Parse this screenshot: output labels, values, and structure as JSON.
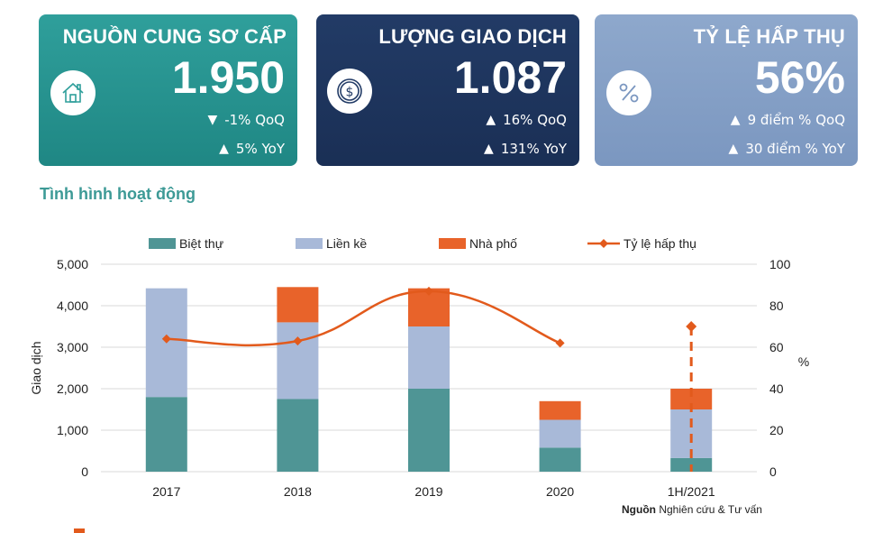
{
  "cards": [
    {
      "title": "NGUỒN CUNG SƠ CẤP",
      "value": "1.950",
      "icon": "house-icon",
      "stats": [
        {
          "direction": "down",
          "text": "-1% QoQ"
        },
        {
          "direction": "up",
          "text": "5% YoY"
        }
      ]
    },
    {
      "title": "LƯỢNG GIAO DỊCH",
      "value": "1.087",
      "icon": "dollar-coin-icon",
      "stats": [
        {
          "direction": "up",
          "text": "16% QoQ"
        },
        {
          "direction": "up",
          "text": "131% YoY"
        }
      ]
    },
    {
      "title": "TỶ LỆ HẤP THỤ",
      "value": "56%",
      "icon": "percent-icon",
      "stats": [
        {
          "direction": "up",
          "text": "9 điểm % QoQ"
        },
        {
          "direction": "up",
          "text": "30 điểm % YoY"
        }
      ]
    }
  ],
  "section_title": "Tình hình hoạt động",
  "source": {
    "label": "Nguồn",
    "text": "Nghiên cứu & Tư vấn"
  },
  "colors": {
    "biet_thu": "#4f9595",
    "lien_ke": "#a8b9d8",
    "nha_pho": "#e8632a",
    "absorption": "#e25a1c",
    "gridline": "#d9d9d9"
  },
  "chart_data": {
    "type": "bar",
    "stacked": true,
    "categories": [
      "2017",
      "2018",
      "2019",
      "2020",
      "1H/2021"
    ],
    "series": [
      {
        "name": "Biệt thự",
        "values": [
          1800,
          1750,
          2000,
          580,
          330
        ],
        "axis": "left"
      },
      {
        "name": "Liền kề",
        "values": [
          2620,
          1850,
          1500,
          670,
          1170
        ],
        "axis": "left"
      },
      {
        "name": "Nhà phố",
        "values": [
          0,
          850,
          920,
          450,
          500
        ],
        "axis": "left"
      },
      {
        "name": "Tỷ lệ hấp thụ",
        "type": "line",
        "values": [
          64,
          63,
          87,
          62,
          70
        ],
        "axis": "right"
      }
    ],
    "ylabel": "Giao dịch",
    "y2label": "%",
    "ylim": [
      0,
      5000
    ],
    "yticks": [
      "0",
      "1,000",
      "2,000",
      "3,000",
      "4,000",
      "5,000"
    ],
    "y2lim": [
      0,
      100
    ],
    "y2ticks": [
      "0",
      "20",
      "40",
      "60",
      "80",
      "100"
    ],
    "legend_position": "top",
    "grid": true
  }
}
